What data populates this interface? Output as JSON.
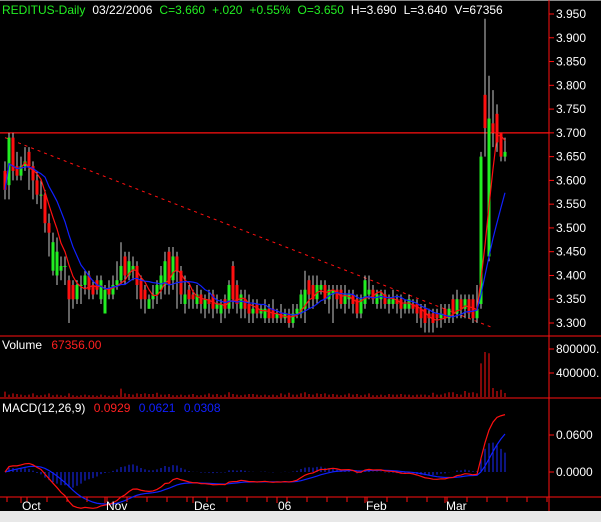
{
  "header": {
    "symbol": "REDITUS-Daily",
    "date": "03/22/2006",
    "close": "C=3.660",
    "change": "+.020",
    "change_pct": "+0.55%",
    "open": "O=3.650",
    "high": "H=3.690",
    "low": "L=3.640",
    "volume": "V=67356"
  },
  "volume_panel": {
    "label": "Volume",
    "value": "67356.00"
  },
  "macd_panel": {
    "label": "MACD(12,26,9)",
    "macd": "0.0929",
    "signal": "0.0621",
    "histogram": "0.0308"
  },
  "colors": {
    "up": "#22ee22",
    "down": "#ff1010",
    "wick": "#c8c8c8",
    "ma_fast": "#ff1010",
    "ma_slow": "#1020ff",
    "axis": "#ff1010",
    "background": "#000000"
  },
  "chart_data": [
    {
      "type": "candlestick",
      "title": "REDITUS-Daily",
      "ylim": [
        3.28,
        3.96
      ],
      "y_ticks": [
        "3.950",
        "3.900",
        "3.850",
        "3.800",
        "3.750",
        "3.700",
        "3.650",
        "3.600",
        "3.550",
        "3.500",
        "3.450",
        "3.400",
        "3.350",
        "3.300"
      ],
      "x_tick_labels": [
        {
          "label": "Oct",
          "index": 4
        },
        {
          "label": "Nov",
          "index": 25
        },
        {
          "label": "Dec",
          "index": 47
        },
        {
          "label": "06",
          "index": 68
        },
        {
          "label": "Feb",
          "index": 90
        },
        {
          "label": "Mar",
          "index": 110
        }
      ],
      "horizontal_line": 3.7,
      "trendline": {
        "from": {
          "index": 0,
          "price": 3.69
        },
        "to": {
          "index": 122,
          "price": 3.29
        }
      },
      "moving_averages": [
        {
          "period": 5,
          "color": "#ff1010"
        },
        {
          "period": 10,
          "color": "#1020ff"
        }
      ],
      "ohlc": [
        [
          3.62,
          3.64,
          3.56,
          3.58
        ],
        [
          3.59,
          3.7,
          3.56,
          3.69
        ],
        [
          3.69,
          3.7,
          3.6,
          3.62
        ],
        [
          3.63,
          3.66,
          3.6,
          3.61
        ],
        [
          3.61,
          3.65,
          3.6,
          3.63
        ],
        [
          3.63,
          3.67,
          3.62,
          3.64
        ],
        [
          3.66,
          3.67,
          3.58,
          3.63
        ],
        [
          3.63,
          3.64,
          3.56,
          3.6
        ],
        [
          3.6,
          3.62,
          3.55,
          3.57
        ],
        [
          3.57,
          3.6,
          3.54,
          3.57
        ],
        [
          3.57,
          3.58,
          3.49,
          3.51
        ],
        [
          3.51,
          3.53,
          3.44,
          3.49
        ],
        [
          3.41,
          3.49,
          3.4,
          3.47
        ],
        [
          3.4,
          3.48,
          3.38,
          3.45
        ],
        [
          3.41,
          3.44,
          3.39,
          3.42
        ],
        [
          3.42,
          3.44,
          3.38,
          3.42
        ],
        [
          3.39,
          3.4,
          3.3,
          3.35
        ],
        [
          3.38,
          3.39,
          3.33,
          3.35
        ],
        [
          3.35,
          3.39,
          3.34,
          3.38
        ],
        [
          3.38,
          3.4,
          3.34,
          3.38
        ],
        [
          3.38,
          3.41,
          3.36,
          3.4
        ],
        [
          3.4,
          3.41,
          3.35,
          3.37
        ],
        [
          3.38,
          3.39,
          3.35,
          3.36
        ],
        [
          3.39,
          3.4,
          3.36,
          3.37
        ],
        [
          3.35,
          3.4,
          3.34,
          3.39
        ],
        [
          3.32,
          3.38,
          3.32,
          3.37
        ],
        [
          3.37,
          3.39,
          3.35,
          3.36
        ],
        [
          3.36,
          3.4,
          3.35,
          3.38
        ],
        [
          3.38,
          3.43,
          3.37,
          3.39
        ],
        [
          3.39,
          3.47,
          3.38,
          3.42
        ],
        [
          3.44,
          3.45,
          3.38,
          3.4
        ],
        [
          3.4,
          3.45,
          3.39,
          3.43
        ],
        [
          3.41,
          3.44,
          3.39,
          3.42
        ],
        [
          3.42,
          3.43,
          3.35,
          3.38
        ],
        [
          3.39,
          3.4,
          3.33,
          3.35
        ],
        [
          3.37,
          3.38,
          3.32,
          3.35
        ],
        [
          3.33,
          3.36,
          3.33,
          3.35
        ],
        [
          3.35,
          3.38,
          3.33,
          3.36
        ],
        [
          3.36,
          3.39,
          3.34,
          3.38
        ],
        [
          3.37,
          3.42,
          3.35,
          3.4
        ],
        [
          3.38,
          3.45,
          3.36,
          3.43
        ],
        [
          3.45,
          3.46,
          3.36,
          3.38
        ],
        [
          3.39,
          3.46,
          3.37,
          3.44
        ],
        [
          3.44,
          3.45,
          3.33,
          3.41
        ],
        [
          3.41,
          3.42,
          3.34,
          3.36
        ],
        [
          3.34,
          3.4,
          3.32,
          3.36
        ],
        [
          3.37,
          3.38,
          3.33,
          3.35
        ],
        [
          3.36,
          3.37,
          3.33,
          3.35
        ],
        [
          3.34,
          3.38,
          3.33,
          3.36
        ],
        [
          3.36,
          3.37,
          3.32,
          3.34
        ],
        [
          3.33,
          3.36,
          3.31,
          3.35
        ],
        [
          3.35,
          3.37,
          3.32,
          3.34
        ],
        [
          3.36,
          3.37,
          3.31,
          3.33
        ],
        [
          3.33,
          3.36,
          3.32,
          3.34
        ],
        [
          3.32,
          3.35,
          3.3,
          3.34
        ],
        [
          3.35,
          3.36,
          3.31,
          3.33
        ],
        [
          3.33,
          3.39,
          3.32,
          3.38
        ],
        [
          3.42,
          3.43,
          3.33,
          3.35
        ],
        [
          3.38,
          3.39,
          3.32,
          3.34
        ],
        [
          3.33,
          3.37,
          3.31,
          3.36
        ],
        [
          3.35,
          3.37,
          3.31,
          3.33
        ],
        [
          3.34,
          3.36,
          3.3,
          3.32
        ],
        [
          3.32,
          3.35,
          3.3,
          3.33
        ],
        [
          3.34,
          3.35,
          3.31,
          3.32
        ],
        [
          3.32,
          3.34,
          3.31,
          3.33
        ],
        [
          3.31,
          3.35,
          3.3,
          3.33
        ],
        [
          3.33,
          3.34,
          3.3,
          3.31
        ],
        [
          3.33,
          3.35,
          3.3,
          3.31
        ],
        [
          3.31,
          3.33,
          3.3,
          3.32
        ],
        [
          3.32,
          3.34,
          3.3,
          3.31
        ],
        [
          3.31,
          3.33,
          3.3,
          3.32
        ],
        [
          3.32,
          3.33,
          3.29,
          3.3
        ],
        [
          3.3,
          3.34,
          3.29,
          3.32
        ],
        [
          3.32,
          3.34,
          3.31,
          3.33
        ],
        [
          3.32,
          3.37,
          3.31,
          3.36
        ],
        [
          3.33,
          3.41,
          3.3,
          3.37
        ],
        [
          3.39,
          3.4,
          3.33,
          3.36
        ],
        [
          3.38,
          3.4,
          3.33,
          3.35
        ],
        [
          3.35,
          3.4,
          3.34,
          3.38
        ],
        [
          3.37,
          3.39,
          3.36,
          3.38
        ],
        [
          3.38,
          3.39,
          3.34,
          3.35
        ],
        [
          3.35,
          3.38,
          3.32,
          3.37
        ],
        [
          3.36,
          3.38,
          3.3,
          3.37
        ],
        [
          3.37,
          3.38,
          3.33,
          3.35
        ],
        [
          3.37,
          3.38,
          3.33,
          3.34
        ],
        [
          3.34,
          3.38,
          3.32,
          3.36
        ],
        [
          3.35,
          3.37,
          3.33,
          3.36
        ],
        [
          3.36,
          3.37,
          3.32,
          3.34
        ],
        [
          3.35,
          3.36,
          3.31,
          3.32
        ],
        [
          3.32,
          3.36,
          3.31,
          3.35
        ],
        [
          3.34,
          3.4,
          3.33,
          3.39
        ],
        [
          3.36,
          3.4,
          3.35,
          3.37
        ],
        [
          3.37,
          3.38,
          3.34,
          3.35
        ],
        [
          3.34,
          3.37,
          3.33,
          3.36
        ],
        [
          3.35,
          3.37,
          3.33,
          3.36
        ],
        [
          3.36,
          3.37,
          3.33,
          3.34
        ],
        [
          3.34,
          3.36,
          3.32,
          3.35
        ],
        [
          3.34,
          3.37,
          3.33,
          3.35
        ],
        [
          3.35,
          3.36,
          3.32,
          3.34
        ],
        [
          3.35,
          3.36,
          3.31,
          3.33
        ],
        [
          3.33,
          3.35,
          3.32,
          3.34
        ],
        [
          3.33,
          3.36,
          3.32,
          3.35
        ],
        [
          3.34,
          3.35,
          3.32,
          3.33
        ],
        [
          3.34,
          3.35,
          3.3,
          3.32
        ],
        [
          3.33,
          3.34,
          3.29,
          3.31
        ],
        [
          3.33,
          3.34,
          3.28,
          3.3
        ],
        [
          3.32,
          3.33,
          3.28,
          3.31
        ],
        [
          3.32,
          3.33,
          3.28,
          3.3
        ],
        [
          3.32,
          3.33,
          3.29,
          3.31
        ],
        [
          3.31,
          3.34,
          3.29,
          3.32
        ],
        [
          3.33,
          3.34,
          3.3,
          3.31
        ],
        [
          3.31,
          3.34,
          3.3,
          3.33
        ],
        [
          3.35,
          3.36,
          3.3,
          3.32
        ],
        [
          3.32,
          3.37,
          3.31,
          3.35
        ],
        [
          3.35,
          3.36,
          3.31,
          3.33
        ],
        [
          3.33,
          3.36,
          3.31,
          3.35
        ],
        [
          3.35,
          3.36,
          3.31,
          3.32
        ],
        [
          3.35,
          3.36,
          3.3,
          3.31
        ],
        [
          3.31,
          3.38,
          3.3,
          3.33
        ],
        [
          3.34,
          3.66,
          3.33,
          3.65
        ],
        [
          3.78,
          3.94,
          3.65,
          3.71
        ],
        [
          3.44,
          3.82,
          3.43,
          3.73
        ],
        [
          3.72,
          3.79,
          3.67,
          3.7
        ],
        [
          3.74,
          3.76,
          3.66,
          3.68
        ],
        [
          3.7,
          3.7,
          3.64,
          3.65
        ],
        [
          3.65,
          3.69,
          3.64,
          3.66
        ]
      ]
    },
    {
      "type": "bar",
      "title": "Volume",
      "ylim": [
        0,
        900000
      ],
      "y_ticks": [
        "800000.",
        "400000."
      ],
      "values": [
        90000,
        40000,
        60000,
        50000,
        40000,
        30000,
        40000,
        60000,
        30000,
        30000,
        40000,
        60000,
        30000,
        40000,
        30000,
        20000,
        60000,
        30000,
        20000,
        30000,
        40000,
        30000,
        30000,
        20000,
        40000,
        30000,
        20000,
        30000,
        30000,
        140000,
        60000,
        50000,
        40000,
        60000,
        50000,
        60000,
        50000,
        50000,
        70000,
        40000,
        40000,
        50000,
        30000,
        30000,
        40000,
        30000,
        40000,
        50000,
        30000,
        30000,
        40000,
        60000,
        40000,
        50000,
        30000,
        40000,
        80000,
        50000,
        40000,
        30000,
        40000,
        50000,
        50000,
        40000,
        30000,
        40000,
        30000,
        40000,
        30000,
        60000,
        40000,
        70000,
        40000,
        40000,
        60000,
        80000,
        50000,
        40000,
        60000,
        50000,
        60000,
        40000,
        50000,
        40000,
        30000,
        40000,
        60000,
        40000,
        50000,
        30000,
        40000,
        60000,
        30000,
        30000,
        40000,
        30000,
        50000,
        40000,
        40000,
        50000,
        40000,
        40000,
        30000,
        40000,
        40000,
        40000,
        30000,
        70000,
        40000,
        40000,
        60000,
        80000,
        80000,
        50000,
        40000,
        100000,
        70000,
        80000,
        60000,
        560000,
        750000,
        730000,
        150000,
        100000,
        120000,
        67356
      ]
    },
    {
      "type": "line",
      "title": "MACD(12,26,9)",
      "ylim": [
        -0.09,
        0.1
      ],
      "y_ticks": [
        "0.0600",
        "0.0000"
      ],
      "series": [
        {
          "name": "0.0929",
          "color": "#ff1010"
        },
        {
          "name": "0.0621",
          "color": "#1020ff"
        },
        {
          "name": "0.0308",
          "color": "#1020ff"
        }
      ]
    }
  ]
}
